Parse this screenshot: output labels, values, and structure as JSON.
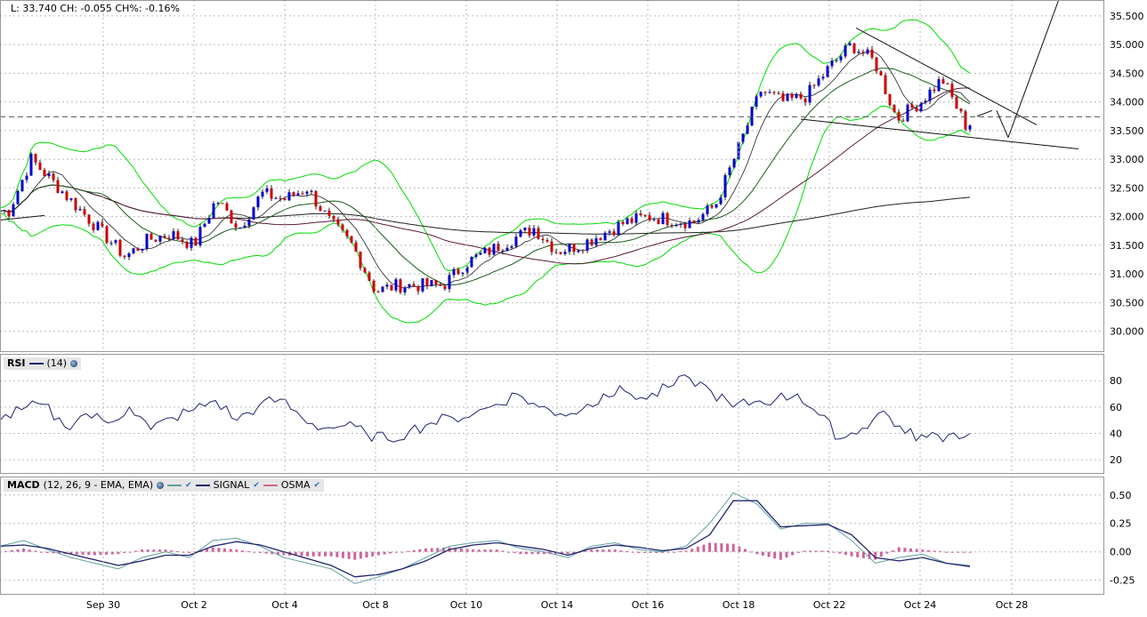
{
  "header": {
    "quote": "L: 33.740 CH: -0.055 CH%: -0.16%"
  },
  "colors": {
    "up": "#0000cc",
    "down": "#cc0000",
    "bands": "#00dd00",
    "rsi": "#1f2470",
    "macd": "#5f9ea0",
    "signal": "#1f2470",
    "osma": "#cc6699",
    "grid": "#bbbbbb"
  },
  "rsi_legend": {
    "name": "RSI",
    "param": "(14)"
  },
  "macd_legend": {
    "name": "MACD",
    "param": "(12, 26, 9 - EMA, EMA)",
    "signal": "SIGNAL",
    "osma": "OSMA"
  },
  "chart_data": [
    {
      "type": "candlestick",
      "title": "",
      "x_labels": [
        "Sep 30",
        "Oct 2",
        "Oct 4",
        "Oct 8",
        "Oct 10",
        "Oct 14",
        "Oct 16",
        "Oct 18",
        "Oct 22",
        "Oct 24",
        "Oct 28"
      ],
      "y_ticks": [
        "35.500",
        "35.000",
        "34.500",
        "34.000",
        "33.500",
        "33.000",
        "32.500",
        "32.000",
        "31.500",
        "31.000",
        "30.500",
        "30.000"
      ],
      "ylim": [
        29.7,
        35.7
      ],
      "last_price": 33.74,
      "price_path": [
        [
          "Sep 27",
          32.1
        ],
        [
          "Sep 27",
          33.0
        ],
        [
          "Sep 30",
          31.7
        ],
        [
          "Sep 30",
          31.3
        ],
        [
          "Oct 1",
          31.6
        ],
        [
          "Oct 1",
          31.7
        ],
        [
          "Oct 2",
          31.5
        ],
        [
          "Oct 2",
          32.3
        ],
        [
          "Oct 3",
          31.8
        ],
        [
          "Oct 3",
          32.4
        ],
        [
          "Oct 4",
          32.3
        ],
        [
          "Oct 4",
          32.5
        ],
        [
          "Oct 7",
          31.9
        ],
        [
          "Oct 7",
          31.5
        ],
        [
          "Oct 8",
          30.7
        ],
        [
          "Oct 8",
          30.8
        ],
        [
          "Oct 9",
          30.8
        ],
        [
          "Oct 9",
          30.8
        ],
        [
          "Oct 10",
          31.2
        ],
        [
          "Oct 11",
          31.6
        ],
        [
          "Oct 11",
          31.8
        ],
        [
          "Oct 14",
          31.4
        ],
        [
          "Oct 14",
          31.5
        ],
        [
          "Oct 15",
          31.7
        ],
        [
          "Oct 15",
          31.9
        ],
        [
          "Oct 16",
          32.0
        ],
        [
          "Oct 17",
          31.9
        ],
        [
          "Oct 17",
          32.2
        ],
        [
          "Oct 18",
          33.2
        ],
        [
          "Oct 18",
          34.2
        ],
        [
          "Oct 21",
          34.0
        ],
        [
          "Oct 21",
          34.1
        ],
        [
          "Oct 22",
          34.6
        ],
        [
          "Oct 22",
          35.0
        ],
        [
          "Oct 23",
          34.7
        ],
        [
          "Oct 23",
          33.7
        ],
        [
          "Oct 24",
          34.0
        ],
        [
          "Oct 24",
          34.4
        ],
        [
          "Oct 25",
          33.6
        ],
        [
          "Oct 25",
          33.74
        ]
      ],
      "series": [
        {
          "name": "Bollinger Bands"
        },
        {
          "name": "moving averages"
        }
      ]
    },
    {
      "type": "line",
      "name": "RSI (14)",
      "y_ticks": [
        "80",
        "60",
        "40",
        "20"
      ],
      "ylim": [
        10,
        95
      ],
      "values": [
        50,
        58,
        62,
        45,
        55,
        48,
        60,
        43,
        52,
        58,
        65,
        50,
        61,
        66,
        52,
        44,
        46,
        40,
        35,
        42,
        48,
        52,
        55,
        62,
        70,
        60,
        55,
        58,
        70,
        72,
        66,
        75,
        82,
        72,
        60,
        64,
        66,
        70,
        54,
        36,
        44,
        57,
        40,
        37,
        39,
        40
      ]
    },
    {
      "type": "line",
      "name": "MACD (12, 26, 9 - EMA, EMA)",
      "y_ticks": [
        "0.50",
        "0.25",
        "0.00",
        "-0.25"
      ],
      "ylim": [
        -0.37,
        0.6
      ],
      "macd": [
        0.05,
        0.1,
        0.02,
        -0.05,
        -0.1,
        -0.15,
        -0.05,
        0.0,
        -0.05,
        0.1,
        0.12,
        0.05,
        -0.05,
        -0.1,
        -0.15,
        -0.28,
        -0.22,
        -0.15,
        -0.05,
        0.05,
        0.08,
        0.1,
        0.03,
        0.0,
        -0.05,
        0.05,
        0.08,
        0.02,
        0.0,
        0.05,
        0.25,
        0.52,
        0.42,
        0.2,
        0.25,
        0.25,
        0.1,
        -0.1,
        -0.05,
        -0.02,
        -0.1,
        -0.12
      ],
      "signal": [
        0.05,
        0.06,
        0.03,
        -0.02,
        -0.07,
        -0.12,
        -0.08,
        -0.03,
        -0.03,
        0.05,
        0.09,
        0.06,
        0.0,
        -0.06,
        -0.12,
        -0.22,
        -0.2,
        -0.15,
        -0.08,
        0.02,
        0.06,
        0.08,
        0.05,
        0.02,
        -0.03,
        0.03,
        0.06,
        0.04,
        0.01,
        0.03,
        0.15,
        0.45,
        0.45,
        0.22,
        0.23,
        0.24,
        0.15,
        -0.05,
        -0.08,
        -0.05,
        -0.1,
        -0.13
      ],
      "osma": [
        0.0,
        0.03,
        -0.01,
        -0.02,
        -0.03,
        -0.02,
        0.02,
        0.02,
        -0.01,
        0.04,
        0.02,
        -0.01,
        -0.03,
        -0.04,
        -0.04,
        -0.07,
        -0.03,
        0.0,
        0.03,
        0.04,
        0.02,
        0.02,
        -0.02,
        -0.02,
        -0.02,
        0.02,
        0.02,
        -0.01,
        -0.01,
        0.01,
        0.08,
        0.07,
        -0.02,
        -0.07,
        0.01,
        0.01,
        -0.04,
        -0.07,
        0.04,
        0.02,
        0.0,
        0.0
      ]
    }
  ]
}
